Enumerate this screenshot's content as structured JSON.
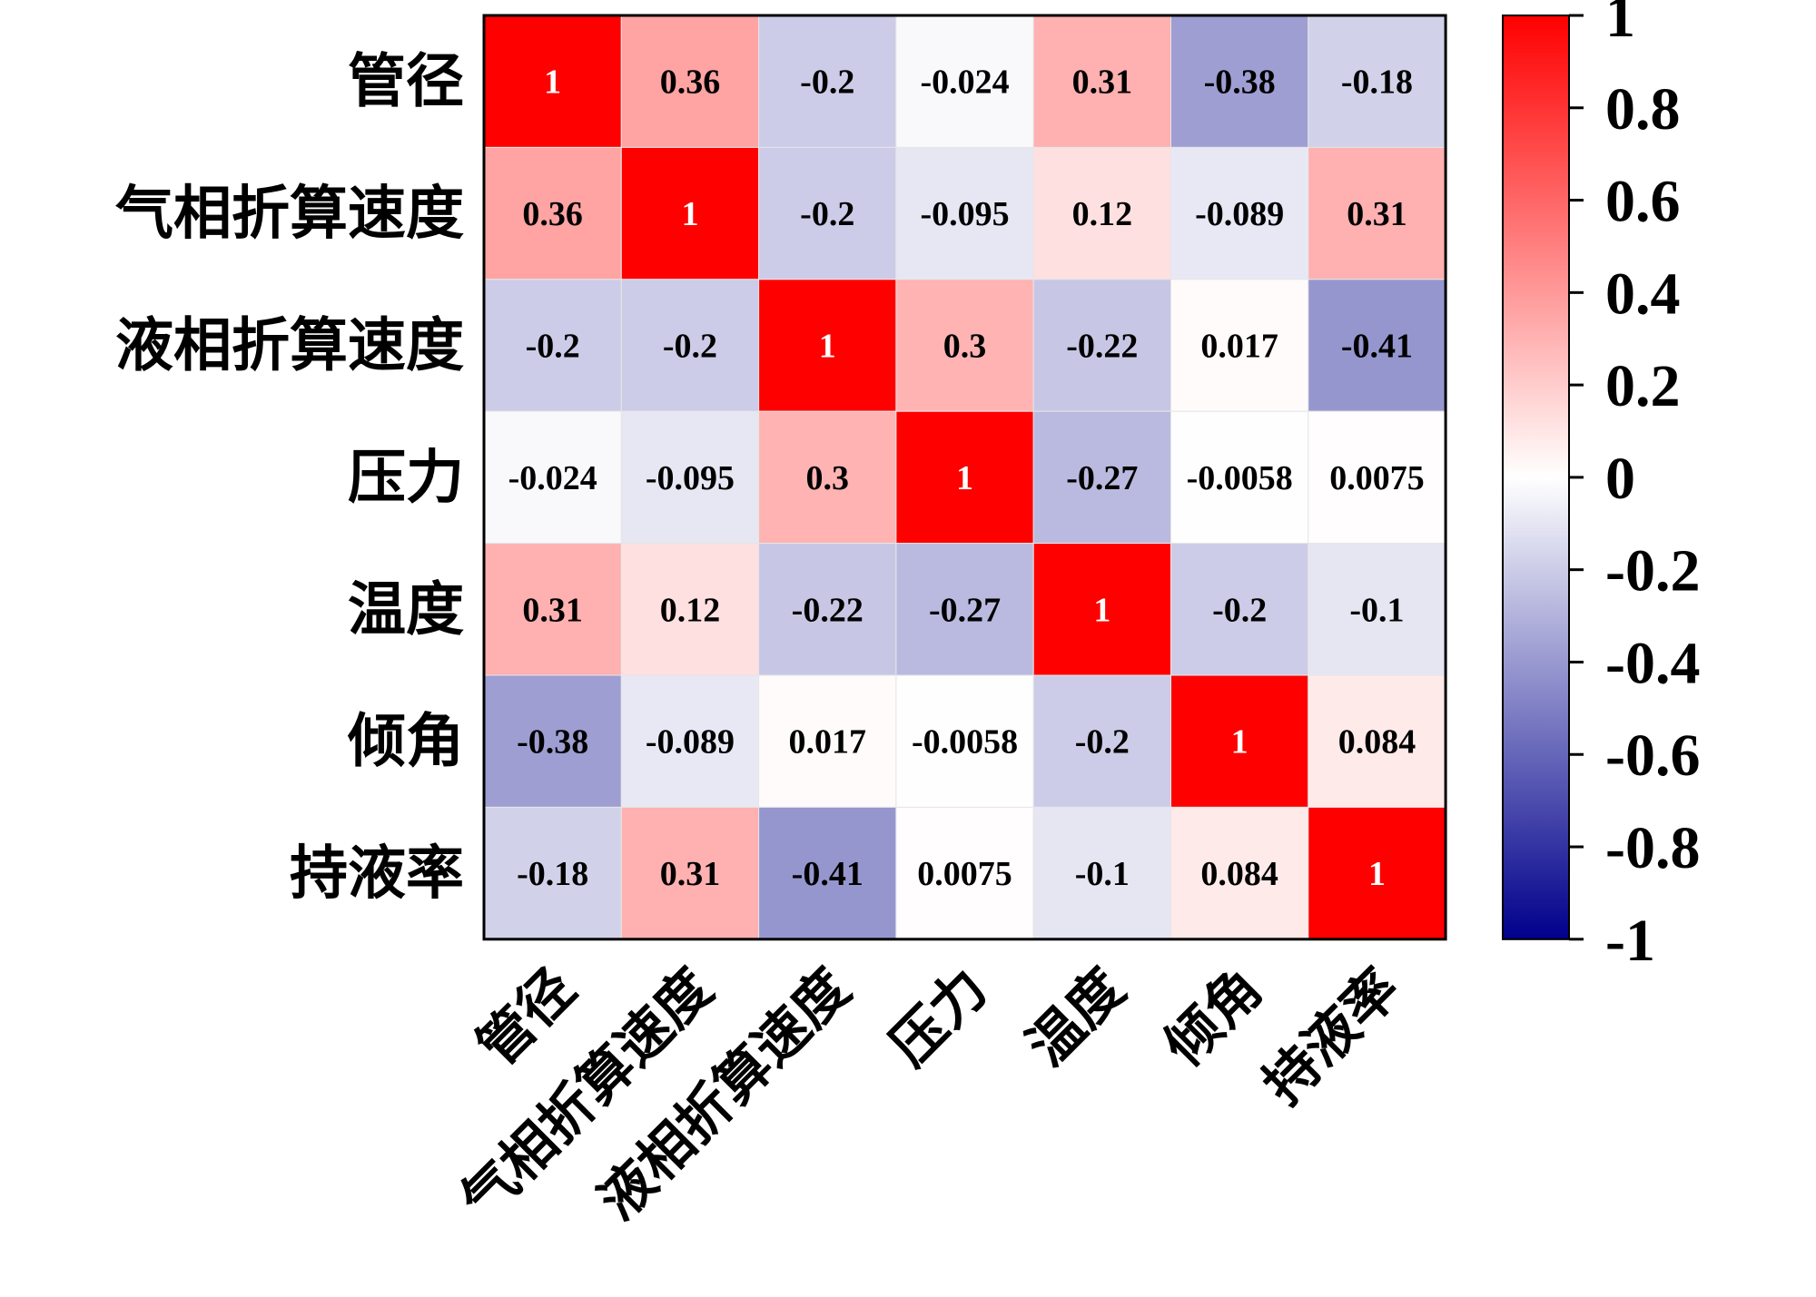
{
  "chart_data": {
    "type": "heatmap",
    "title": "",
    "rows": [
      "管径",
      "气相折算速度",
      "液相折算速度",
      "压力",
      "温度",
      "倾角",
      "持液率"
    ],
    "columns": [
      "管径",
      "气相折算速度",
      "液相折算速度",
      "压力",
      "温度",
      "倾角",
      "持液率"
    ],
    "values": [
      [
        1,
        0.36,
        -0.2,
        -0.024,
        0.31,
        -0.38,
        -0.18
      ],
      [
        0.36,
        1,
        -0.2,
        -0.095,
        0.12,
        -0.089,
        0.31
      ],
      [
        -0.2,
        -0.2,
        1,
        0.3,
        -0.22,
        0.017,
        -0.41
      ],
      [
        -0.024,
        -0.095,
        0.3,
        1,
        -0.27,
        -0.0058,
        0.0075
      ],
      [
        0.31,
        0.12,
        -0.22,
        -0.27,
        1,
        -0.2,
        -0.1
      ],
      [
        -0.38,
        -0.089,
        0.017,
        -0.0058,
        -0.2,
        1,
        0.084
      ],
      [
        -0.18,
        0.31,
        -0.41,
        0.0075,
        -0.1,
        0.084,
        1
      ]
    ],
    "labels": [
      [
        "1",
        "0.36",
        "-0.2",
        "-0.024",
        "0.31",
        "-0.38",
        "-0.18"
      ],
      [
        "0.36",
        "1",
        "-0.2",
        "-0.095",
        "0.12",
        "-0.089",
        "0.31"
      ],
      [
        "-0.2",
        "-0.2",
        "1",
        "0.3",
        "-0.22",
        "0.017",
        "-0.41"
      ],
      [
        "-0.024",
        "-0.095",
        "0.3",
        "1",
        "-0.27",
        "-0.0058",
        "0.0075"
      ],
      [
        "0.31",
        "0.12",
        "-0.22",
        "-0.27",
        "1",
        "-0.2",
        "-0.1"
      ],
      [
        "-0.38",
        "-0.089",
        "0.017",
        "-0.0058",
        "-0.2",
        "1",
        "0.084"
      ],
      [
        "-0.18",
        "0.31",
        "-0.41",
        "0.0075",
        "-0.1",
        "0.084",
        "1"
      ]
    ],
    "colorbar": {
      "range": [
        -1,
        1
      ],
      "ticks": [
        1,
        0.8,
        0.6,
        0.4,
        0.2,
        0,
        -0.2,
        -0.4,
        -0.6,
        -0.8,
        -1
      ],
      "tick_labels": [
        "1",
        "0.8",
        "0.6",
        "0.4",
        "0.2",
        "0",
        "-0.2",
        "-0.4",
        "-0.6",
        "-0.8",
        "-1"
      ],
      "colormap": [
        "#00008b",
        "#ffffff",
        "#ff0000"
      ]
    },
    "grid": true,
    "legend": "colorbar-right"
  }
}
